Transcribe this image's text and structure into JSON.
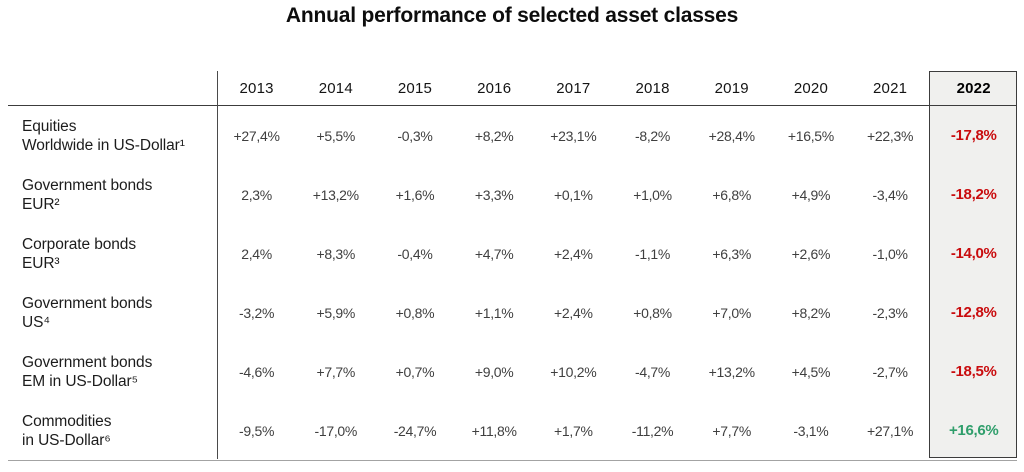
{
  "title": "Annual performance of selected asset classes",
  "colors": {
    "negative": "#c90c0e",
    "positive": "#2f9e6b",
    "highlight_column_bg": "#f0f0ee",
    "rule_dark": "#3c3c3c",
    "rule_light": "#a3a3a3"
  },
  "table": {
    "years": [
      "2013",
      "2014",
      "2015",
      "2016",
      "2017",
      "2018",
      "2019",
      "2020",
      "2021",
      "2022"
    ],
    "rows": [
      {
        "label_line1": "Equities",
        "label_line2": "Worldwide in US-Dollar¹",
        "values": [
          "+27,4%",
          "+5,5%",
          "-0,3%",
          "+8,2%",
          "+23,1%",
          "-8,2%",
          "+28,4%",
          "+16,5%",
          "+22,3%"
        ],
        "value_2022": "-17,8%",
        "trend_2022": "negative",
        "color_2022": "#c90c0e"
      },
      {
        "label_line1": "Government bonds",
        "label_line2": "EUR²",
        "values": [
          "2,3%",
          "+13,2%",
          "+1,6%",
          "+3,3%",
          "+0,1%",
          "+1,0%",
          "+6,8%",
          "+4,9%",
          "-3,4%"
        ],
        "value_2022": "-18,2%",
        "trend_2022": "negative",
        "color_2022": "#c90c0e"
      },
      {
        "label_line1": "Corporate bonds",
        "label_line2": "EUR³",
        "values": [
          "2,4%",
          "+8,3%",
          "-0,4%",
          "+4,7%",
          "+2,4%",
          "-1,1%",
          "+6,3%",
          "+2,6%",
          "-1,0%"
        ],
        "value_2022": "-14,0%",
        "trend_2022": "negative",
        "color_2022": "#c90c0e"
      },
      {
        "label_line1": "Government bonds",
        "label_line2": "US⁴",
        "values": [
          "-3,2%",
          "+5,9%",
          "+0,8%",
          "+1,1%",
          "+2,4%",
          "+0,8%",
          "+7,0%",
          "+8,2%",
          "-2,3%"
        ],
        "value_2022": "-12,8%",
        "trend_2022": "negative",
        "color_2022": "#c90c0e"
      },
      {
        "label_line1": "Government bonds",
        "label_line2": "EM in US-Dollar⁵",
        "values": [
          "-4,6%",
          "+7,7%",
          "+0,7%",
          "+9,0%",
          "+10,2%",
          "-4,7%",
          "+13,2%",
          "+4,5%",
          "-2,7%"
        ],
        "value_2022": "-18,5%",
        "trend_2022": "negative",
        "color_2022": "#c90c0e"
      },
      {
        "label_line1": "Commodities",
        "label_line2": "in US-Dollar⁶",
        "values": [
          "-9,5%",
          "-17,0%",
          "-24,7%",
          "+11,8%",
          "+1,7%",
          "-11,2%",
          "+7,7%",
          "-3,1%",
          "+27,1%"
        ],
        "value_2022": "+16,6%",
        "trend_2022": "positive",
        "color_2022": "#2f9e6b"
      }
    ]
  },
  "chart_data": {
    "type": "table",
    "title": "Annual performance of selected asset classes",
    "columns": [
      2013,
      2014,
      2015,
      2016,
      2017,
      2018,
      2019,
      2020,
      2021,
      2022
    ],
    "units": "%",
    "decimal_separator": ",",
    "highlight_column": 2022,
    "rows": [
      {
        "label": "Equities Worldwide in US-Dollar¹",
        "values": [
          27.4,
          5.5,
          -0.3,
          8.2,
          23.1,
          -8.2,
          28.4,
          16.5,
          22.3,
          -17.8
        ]
      },
      {
        "label": "Government bonds EUR²",
        "values": [
          2.3,
          13.2,
          1.6,
          3.3,
          0.1,
          1.0,
          6.8,
          4.9,
          -3.4,
          -18.2
        ]
      },
      {
        "label": "Corporate bonds EUR³",
        "values": [
          2.4,
          8.3,
          -0.4,
          4.7,
          2.4,
          -1.1,
          6.3,
          2.6,
          -1.0,
          -14.0
        ]
      },
      {
        "label": "Government bonds US⁴",
        "values": [
          -3.2,
          5.9,
          0.8,
          1.1,
          2.4,
          0.8,
          7.0,
          8.2,
          -2.3,
          -12.8
        ]
      },
      {
        "label": "Government bonds EM in US-Dollar⁵",
        "values": [
          -4.6,
          7.7,
          0.7,
          9.0,
          10.2,
          -4.7,
          13.2,
          4.5,
          -2.7,
          -18.5
        ]
      },
      {
        "label": "Commodities in US-Dollar⁶",
        "values": [
          -9.5,
          -17.0,
          -24.7,
          11.8,
          1.7,
          -11.2,
          7.7,
          -3.1,
          27.1,
          16.6
        ]
      }
    ]
  }
}
